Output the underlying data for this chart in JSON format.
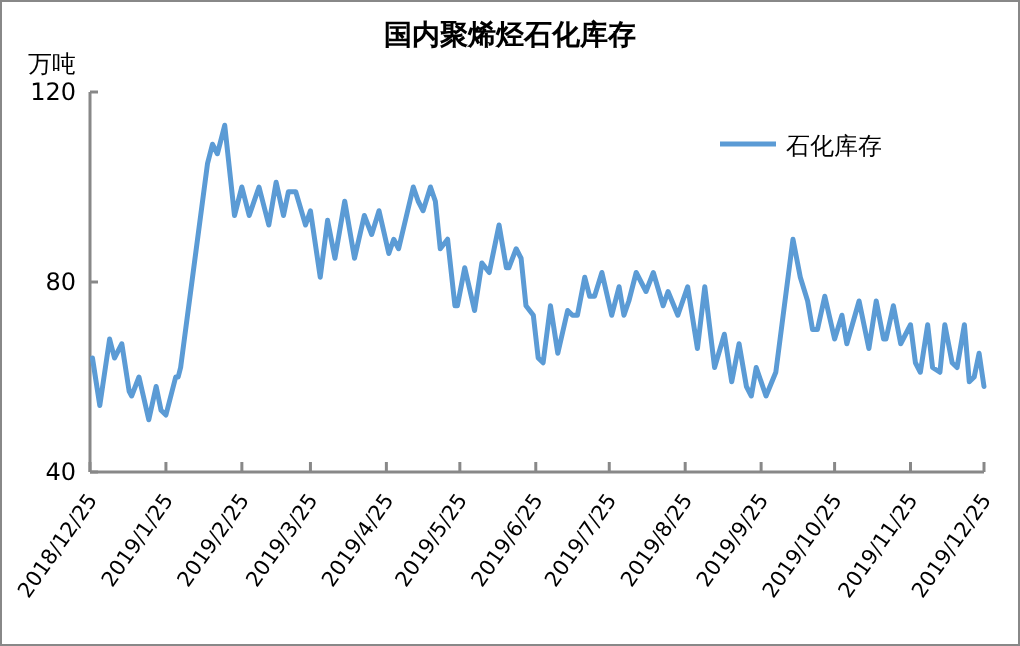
{
  "chart_data": {
    "type": "line",
    "title": "国内聚烯烃石化库存",
    "ylabel": "万吨",
    "x": [
      "2018-12-26",
      "2018-12-29",
      "2019-01-02",
      "2019-01-04",
      "2019-01-07",
      "2019-01-10",
      "2019-01-11",
      "2019-01-14",
      "2019-01-18",
      "2019-01-21",
      "2019-01-23",
      "2019-01-25",
      "2019-01-29",
      "2019-01-30",
      "2019-01-31",
      "2019-02-11",
      "2019-02-13",
      "2019-02-15",
      "2019-02-18",
      "2019-02-22",
      "2019-02-25",
      "2019-02-28",
      "2019-03-04",
      "2019-03-08",
      "2019-03-11",
      "2019-03-14",
      "2019-03-16",
      "2019-03-19",
      "2019-03-23",
      "2019-03-25",
      "2019-03-29",
      "2019-04-01",
      "2019-04-04",
      "2019-04-08",
      "2019-04-12",
      "2019-04-16",
      "2019-04-19",
      "2019-04-22",
      "2019-04-26",
      "2019-04-28",
      "2019-04-30",
      "2019-05-06",
      "2019-05-08",
      "2019-05-10",
      "2019-05-13",
      "2019-05-15",
      "2019-05-17",
      "2019-05-20",
      "2019-05-23",
      "2019-05-24",
      "2019-05-27",
      "2019-05-31",
      "2019-06-03",
      "2019-06-06",
      "2019-06-10",
      "2019-06-13",
      "2019-06-14",
      "2019-06-17",
      "2019-06-19",
      "2019-06-21",
      "2019-06-24",
      "2019-06-26",
      "2019-06-28",
      "2019-07-01",
      "2019-07-04",
      "2019-07-08",
      "2019-07-10",
      "2019-07-12",
      "2019-07-15",
      "2019-07-17",
      "2019-07-19",
      "2019-07-22",
      "2019-07-26",
      "2019-07-29",
      "2019-07-31",
      "2019-08-02",
      "2019-08-05",
      "2019-08-09",
      "2019-08-12",
      "2019-08-16",
      "2019-08-18",
      "2019-08-22",
      "2019-08-26",
      "2019-08-30",
      "2019-09-02",
      "2019-09-06",
      "2019-09-10",
      "2019-09-13",
      "2019-09-16",
      "2019-09-19",
      "2019-09-21",
      "2019-09-23",
      "2019-09-27",
      "2019-10-01",
      "2019-10-08",
      "2019-10-11",
      "2019-10-14",
      "2019-10-16",
      "2019-10-18",
      "2019-10-21",
      "2019-10-25",
      "2019-10-28",
      "2019-10-30",
      "2019-11-04",
      "2019-11-08",
      "2019-11-11",
      "2019-11-14",
      "2019-11-15",
      "2019-11-18",
      "2019-11-21",
      "2019-11-25",
      "2019-11-27",
      "2019-11-29",
      "2019-12-02",
      "2019-12-04",
      "2019-12-07",
      "2019-12-09",
      "2019-12-12",
      "2019-12-14",
      "2019-12-17",
      "2019-12-19",
      "2019-12-21",
      "2019-12-23",
      "2019-12-25"
    ],
    "series": [
      {
        "name": "石化库存",
        "color": "#5b9bd5",
        "values": [
          64,
          54,
          68,
          64,
          67,
          57,
          56,
          60,
          51,
          58,
          53,
          52,
          60,
          60,
          62,
          105,
          109,
          107,
          113,
          94,
          100,
          94,
          100,
          92,
          101,
          94,
          99,
          99,
          92,
          95,
          81,
          93,
          85,
          97,
          85,
          94,
          90,
          95,
          86,
          89,
          87,
          100,
          97,
          95,
          100,
          97,
          87,
          89,
          75,
          75,
          83,
          74,
          84,
          82,
          92,
          83,
          83,
          87,
          85,
          75,
          73,
          64,
          63,
          75,
          65,
          74,
          73,
          73,
          81,
          77,
          77,
          82,
          73,
          79,
          73,
          76,
          82,
          78,
          82,
          75,
          78,
          73,
          79,
          66,
          79,
          62,
          69,
          59,
          67,
          58,
          56,
          62,
          56,
          61,
          89,
          81,
          76,
          70,
          70,
          77,
          68,
          73,
          67,
          76,
          66,
          76,
          68,
          68,
          75,
          67,
          71,
          63,
          61,
          71,
          62,
          61,
          71,
          63,
          62,
          71,
          59,
          60,
          65,
          58
        ]
      }
    ],
    "ylim": [
      40,
      120
    ],
    "yticks": [
      40,
      80,
      120
    ],
    "xlim": [
      "2018-12-25",
      "2019-12-25"
    ],
    "xticks": [
      {
        "value": "2018-12-25",
        "label": "2018/12/25"
      },
      {
        "value": "2019-01-25",
        "label": "2019/1/25"
      },
      {
        "value": "2019-02-25",
        "label": "2019/2/25"
      },
      {
        "value": "2019-03-25",
        "label": "2019/3/25"
      },
      {
        "value": "2019-04-25",
        "label": "2019/4/25"
      },
      {
        "value": "2019-05-25",
        "label": "2019/5/25"
      },
      {
        "value": "2019-06-25",
        "label": "2019/6/25"
      },
      {
        "value": "2019-07-25",
        "label": "2019/7/25"
      },
      {
        "value": "2019-08-25",
        "label": "2019/8/25"
      },
      {
        "value": "2019-09-25",
        "label": "2019/9/25"
      },
      {
        "value": "2019-10-25",
        "label": "2019/10/25"
      },
      {
        "value": "2019-11-25",
        "label": "2019/11/25"
      },
      {
        "value": "2019-12-25",
        "label": "2019/12/25"
      }
    ],
    "legend": "top right",
    "grid": false,
    "marker": "none",
    "line_style": "solid"
  }
}
